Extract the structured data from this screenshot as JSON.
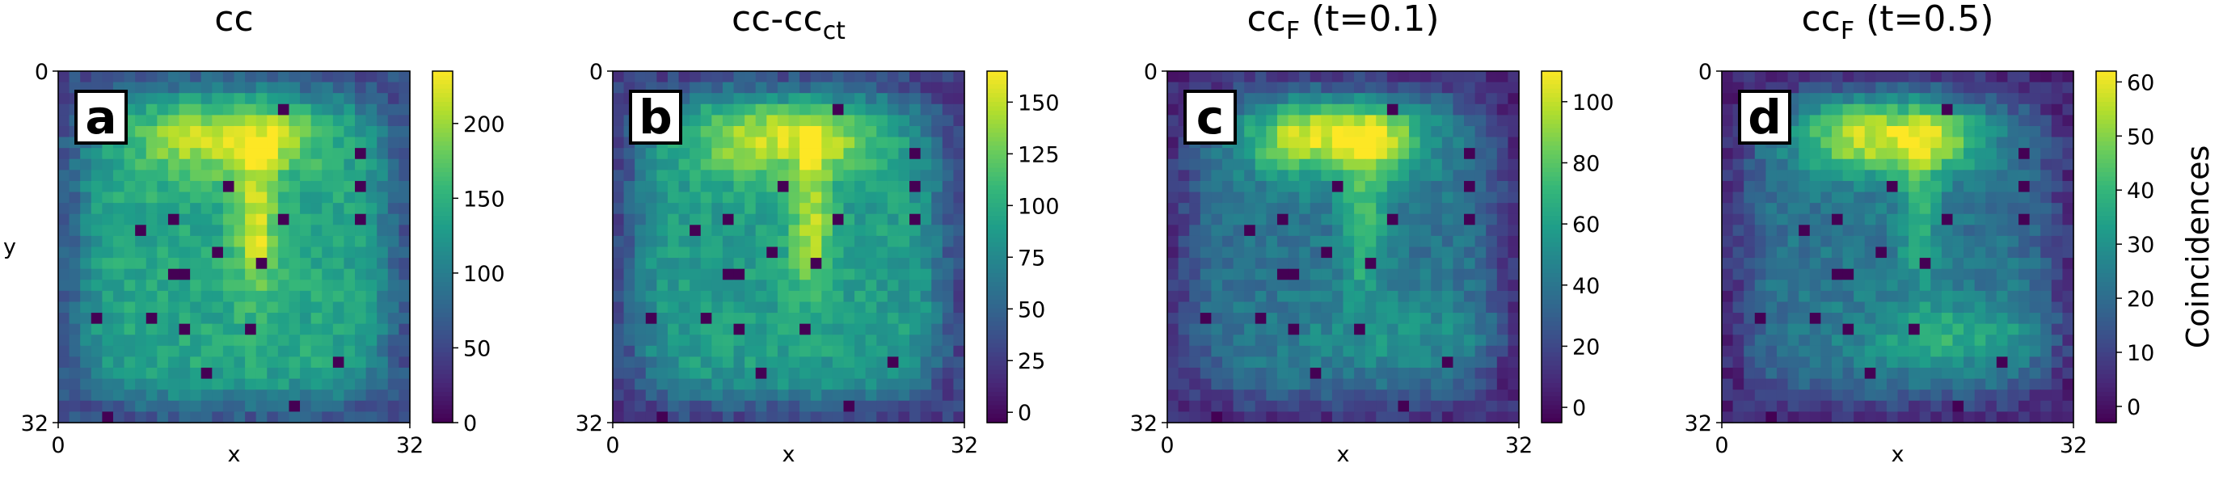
{
  "figure": {
    "colorbar_label": "Coincidences",
    "colormap": "viridis",
    "grid_size": 32
  },
  "chart_data": [
    {
      "type": "heatmap",
      "panel_letter": "a",
      "title_base": "cc",
      "title_sub": "",
      "title_suffix": "",
      "xlabel": "x",
      "ylabel": "y",
      "x_ticks": [
        "0",
        "32"
      ],
      "y_ticks": [
        "0",
        "32"
      ],
      "xlim": [
        0,
        32
      ],
      "ylim": [
        32,
        0
      ],
      "colorbar": {
        "vmin": 0,
        "vmax": 235,
        "ticks": [
          0,
          50,
          100,
          150,
          200
        ]
      },
      "features": {
        "top_blob": 215,
        "center_streak": 225,
        "interior": 140,
        "edge": 55,
        "lower_band": 0
      }
    },
    {
      "type": "heatmap",
      "panel_letter": "b",
      "title_base": "cc-cc",
      "title_sub": "ct",
      "title_suffix": "",
      "xlabel": "x",
      "ylabel": "",
      "x_ticks": [
        "0",
        "32"
      ],
      "y_ticks": [
        "0",
        "32"
      ],
      "xlim": [
        0,
        32
      ],
      "ylim": [
        32,
        0
      ],
      "colorbar": {
        "vmin": -5,
        "vmax": 165,
        "ticks": [
          0,
          25,
          50,
          75,
          100,
          125,
          150
        ]
      },
      "features": {
        "top_blob": 150,
        "center_streak": 150,
        "interior": 90,
        "edge": 25,
        "lower_band": 0
      }
    },
    {
      "type": "heatmap",
      "panel_letter": "c",
      "title_base": "cc",
      "title_sub": "F",
      "title_suffix": " (t=0.1)",
      "xlabel": "x",
      "ylabel": "",
      "x_ticks": [
        "0",
        "32"
      ],
      "y_ticks": [
        "0",
        "32"
      ],
      "xlim": [
        0,
        32
      ],
      "ylim": [
        32,
        0
      ],
      "colorbar": {
        "vmin": -5,
        "vmax": 110,
        "ticks": [
          0,
          20,
          40,
          60,
          80,
          100
        ]
      },
      "features": {
        "top_blob": 105,
        "center_streak": 80,
        "interior": 40,
        "edge": 8,
        "lower_band": 55
      }
    },
    {
      "type": "heatmap",
      "panel_letter": "d",
      "title_base": "cc",
      "title_sub": "F",
      "title_suffix": " (t=0.5)",
      "xlabel": "x",
      "ylabel": "",
      "x_ticks": [
        "0",
        "32"
      ],
      "y_ticks": [
        "0",
        "32"
      ],
      "xlim": [
        0,
        32
      ],
      "ylim": [
        32,
        0
      ],
      "colorbar": {
        "vmin": -3,
        "vmax": 62,
        "ticks": [
          0,
          10,
          20,
          30,
          40,
          50,
          60
        ]
      },
      "features": {
        "top_blob": 58,
        "center_streak": 38,
        "interior": 22,
        "edge": 4,
        "lower_band": 38
      }
    }
  ]
}
